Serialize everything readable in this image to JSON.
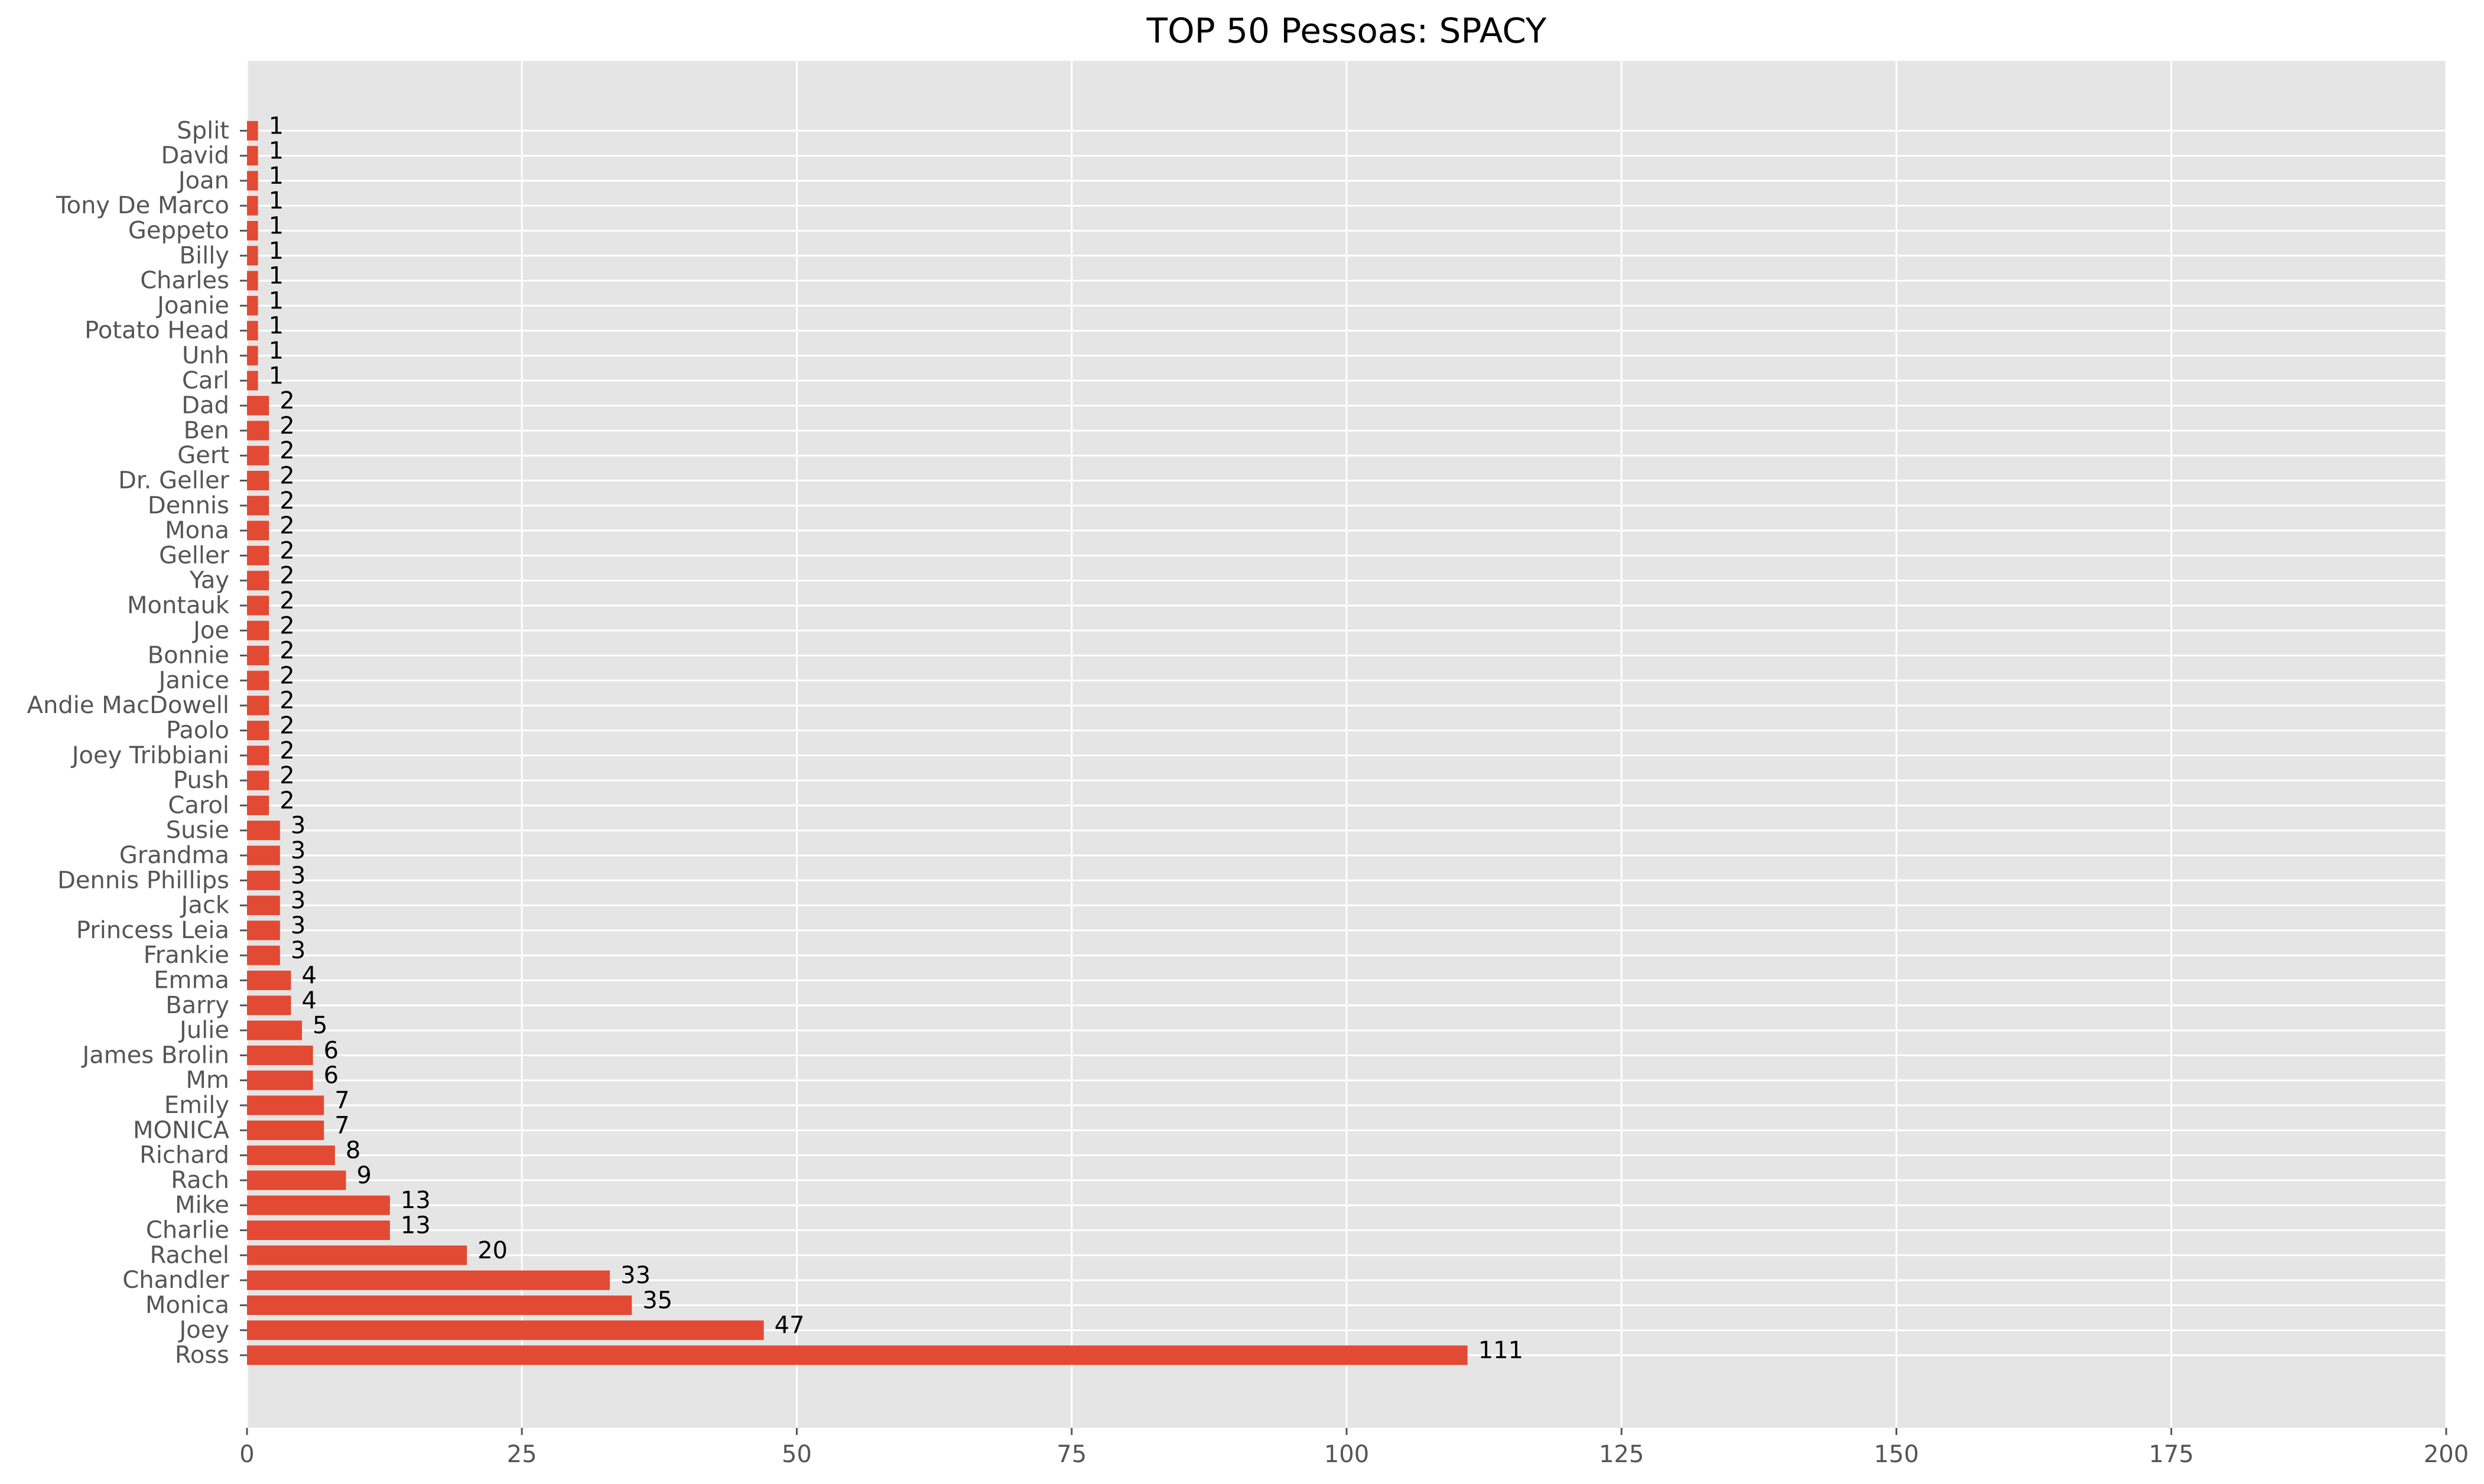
{
  "chart_data": {
    "type": "bar",
    "orientation": "horizontal",
    "title": "TOP 50 Pessoas: SPACY",
    "xlabel": "",
    "ylabel": "",
    "xlim": [
      0,
      200
    ],
    "xticks": [
      0,
      25,
      50,
      75,
      100,
      125,
      150,
      175,
      200
    ],
    "grid": true,
    "bar_color": "#E24A33",
    "background_color": "#E5E5E5",
    "grid_color": "#FFFFFF",
    "categories": [
      "Ross",
      "Joey",
      "Monica",
      "Chandler",
      "Rachel",
      "Charlie",
      "Mike",
      "Rach",
      "Richard",
      "MONICA",
      "Emily",
      "Mm",
      "James Brolin",
      "Julie",
      "Barry",
      "Emma",
      "Frankie",
      "Princess Leia",
      "Jack",
      "Dennis Phillips",
      "Grandma",
      "Susie",
      "Carol",
      "Push",
      "Joey Tribbiani",
      "Paolo",
      "Andie MacDowell",
      "Janice",
      "Bonnie",
      "Joe",
      "Montauk",
      "Yay",
      "Geller",
      "Mona",
      "Dennis",
      "Dr. Geller",
      "Gert",
      "Ben",
      "Dad",
      "Carl",
      "Unh",
      "Potato Head",
      "Joanie",
      "Charles",
      "Billy",
      "Geppeto",
      "Tony De Marco",
      "Joan",
      "David",
      "Split"
    ],
    "values": [
      111,
      47,
      35,
      33,
      20,
      13,
      13,
      9,
      8,
      7,
      7,
      6,
      6,
      5,
      4,
      4,
      3,
      3,
      3,
      3,
      3,
      3,
      2,
      2,
      2,
      2,
      2,
      2,
      2,
      2,
      2,
      2,
      2,
      2,
      2,
      2,
      2,
      2,
      2,
      1,
      1,
      1,
      1,
      1,
      1,
      1,
      1,
      1,
      1,
      1
    ]
  }
}
